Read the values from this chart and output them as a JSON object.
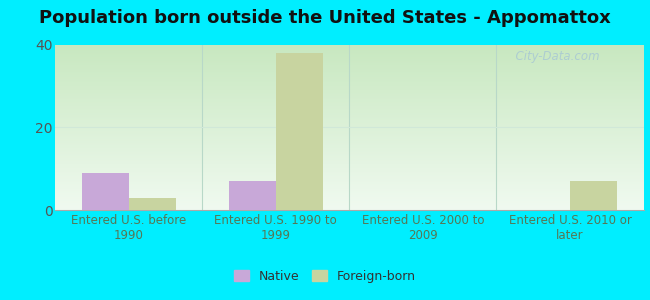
{
  "title": "Population born outside the United States - Appomattox",
  "categories": [
    "Entered U.S. before\n1990",
    "Entered U.S. 1990 to\n1999",
    "Entered U.S. 2000 to\n2009",
    "Entered U.S. 2010 or\nlater"
  ],
  "native_values": [
    9,
    7,
    0,
    0
  ],
  "foreign_born_values": [
    3,
    38,
    0,
    7
  ],
  "native_color": "#c8a8d8",
  "foreign_born_color": "#c8d4a0",
  "ylim": [
    0,
    40
  ],
  "yticks": [
    0,
    20,
    40
  ],
  "background_color": "#00eeff",
  "bar_width": 0.32,
  "legend_native": "Native",
  "legend_foreign": "Foreign-born",
  "watermark": "  City-Data.com",
  "title_fontsize": 13,
  "tick_label_fontsize": 8.5,
  "ytick_fontsize": 10,
  "bg_gradient_top": "#c8e8c0",
  "bg_gradient_bottom": "#f0faf0"
}
